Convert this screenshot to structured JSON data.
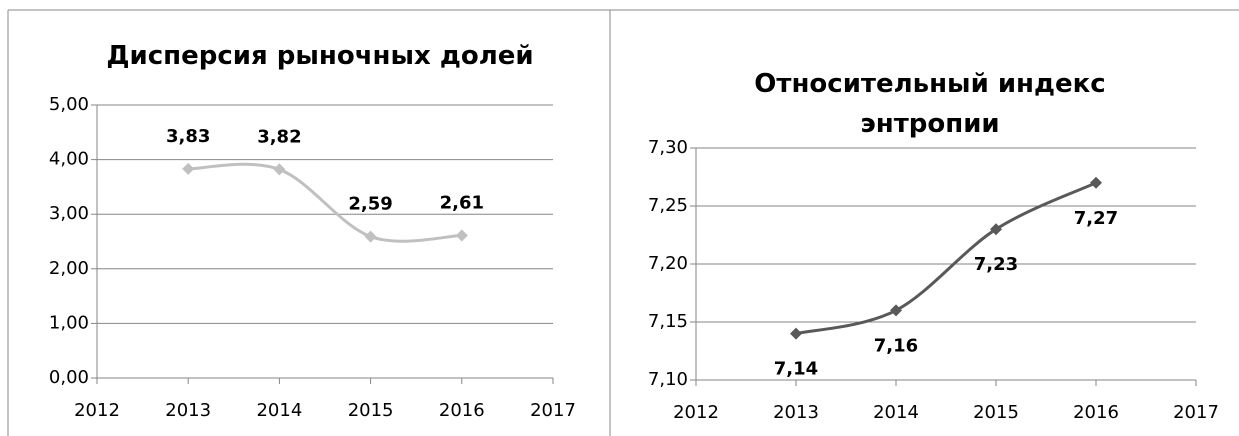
{
  "chart_data": [
    {
      "type": "line",
      "title": "Дисперсия рыночных долей",
      "x": [
        2013,
        2014,
        2015,
        2016
      ],
      "series": [
        {
          "color": "#c0c0c0",
          "values": [
            3.83,
            3.82,
            2.59,
            2.61
          ],
          "value_labels": [
            "3,83",
            "3,82",
            "2,59",
            "2,61"
          ]
        }
      ],
      "xlim": [
        2012,
        2017
      ],
      "xticks": [
        2012,
        2013,
        2014,
        2015,
        2016,
        2017
      ],
      "ylim": [
        0,
        5
      ],
      "yticks": [
        {
          "value": 0,
          "label": "0,00"
        },
        {
          "value": 1,
          "label": "1,00"
        },
        {
          "value": 2,
          "label": "2,00"
        },
        {
          "value": 3,
          "label": "3,00"
        },
        {
          "value": 4,
          "label": "4,00"
        },
        {
          "value": 5,
          "label": "5,00"
        }
      ],
      "grid": true
    },
    {
      "type": "line",
      "title": "Относительный индекс энтропии",
      "x": [
        2013,
        2014,
        2015,
        2016
      ],
      "series": [
        {
          "color": "#595959",
          "values": [
            7.14,
            7.16,
            7.23,
            7.27
          ],
          "value_labels": [
            "7,14",
            "7,16",
            "7,23",
            "7,27"
          ]
        }
      ],
      "xlim": [
        2012,
        2017
      ],
      "xticks": [
        2012,
        2013,
        2014,
        2015,
        2016,
        2017
      ],
      "ylim": [
        7.1,
        7.3
      ],
      "yticks": [
        {
          "value": 7.1,
          "label": "7,10"
        },
        {
          "value": 7.15,
          "label": "7,15"
        },
        {
          "value": 7.2,
          "label": "7,20"
        },
        {
          "value": 7.25,
          "label": "7,25"
        },
        {
          "value": 7.3,
          "label": "7,30"
        }
      ],
      "grid": true
    }
  ]
}
